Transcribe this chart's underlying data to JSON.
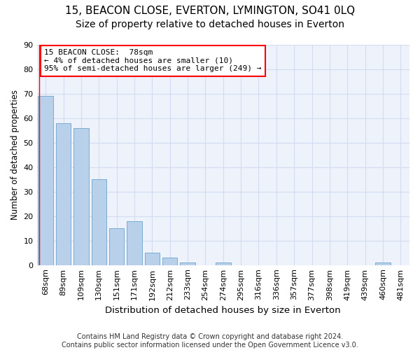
{
  "title1": "15, BEACON CLOSE, EVERTON, LYMINGTON, SO41 0LQ",
  "title2": "Size of property relative to detached houses in Everton",
  "xlabel": "Distribution of detached houses by size in Everton",
  "ylabel": "Number of detached properties",
  "categories": [
    "68sqm",
    "89sqm",
    "109sqm",
    "130sqm",
    "151sqm",
    "171sqm",
    "192sqm",
    "212sqm",
    "233sqm",
    "254sqm",
    "274sqm",
    "295sqm",
    "316sqm",
    "336sqm",
    "357sqm",
    "377sqm",
    "398sqm",
    "419sqm",
    "439sqm",
    "460sqm",
    "481sqm"
  ],
  "values": [
    69,
    58,
    56,
    35,
    15,
    18,
    5,
    3,
    1,
    0,
    1,
    0,
    0,
    0,
    0,
    0,
    0,
    0,
    0,
    1,
    0
  ],
  "bar_color": "#b8d0ea",
  "bar_edge_color": "#7aadd4",
  "annotation_text_line1": "15 BEACON CLOSE:  78sqm",
  "annotation_text_line2": "← 4% of detached houses are smaller (10)",
  "annotation_text_line3": "95% of semi-detached houses are larger (249) →",
  "ylim": [
    0,
    90
  ],
  "yticks": [
    0,
    10,
    20,
    30,
    40,
    50,
    60,
    70,
    80,
    90
  ],
  "grid_color": "#d4ddf0",
  "background_color": "#eef2fb",
  "footer": "Contains HM Land Registry data © Crown copyright and database right 2024.\nContains public sector information licensed under the Open Government Licence v3.0.",
  "title_fontsize": 11,
  "subtitle_fontsize": 10,
  "xlabel_fontsize": 9.5,
  "ylabel_fontsize": 8.5,
  "tick_fontsize": 8,
  "footer_fontsize": 7,
  "ann_fontsize": 8
}
